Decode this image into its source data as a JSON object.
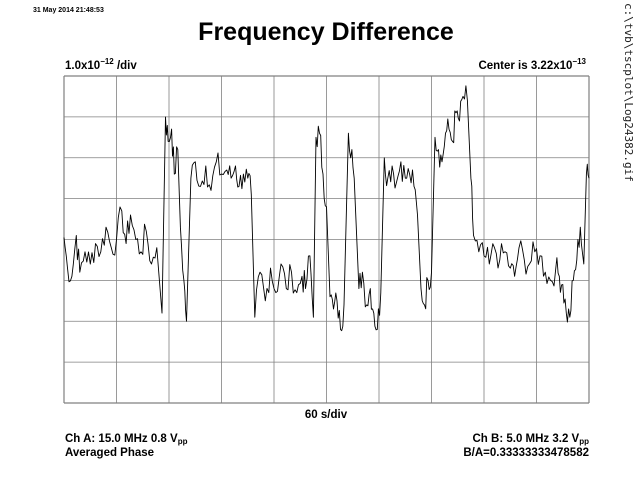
{
  "header": {
    "timestamp": "31 May 2014 21:48:53",
    "title": "Frequency Difference",
    "file_path": "c:\\tvb\\tscplot\\Log24382.gif"
  },
  "axis_labels": {
    "y_scale_mantissa": "1.0x10",
    "y_scale_exponent": "−12",
    "y_scale_suffix": " /div",
    "center_prefix": "Center is 3.22x10",
    "center_exponent": "−13",
    "x_div": "60 s/div"
  },
  "footer": {
    "ch_a_prefix": "Ch A: 15.0 MHz 0.8 V",
    "ch_a_sub": "pp",
    "mode": "Averaged Phase",
    "ch_b_prefix": "Ch B: 5.0 MHz 3.2 V",
    "ch_b_sub": "pp",
    "ratio": "B/A=0.33333333478582"
  },
  "colors": {
    "trace": "#000000",
    "grid": "#808080",
    "background": "#ffffff"
  },
  "chart_data": {
    "type": "line",
    "title": "Frequency Difference",
    "x_unit": "s",
    "y_unit": "parts in 10^-12, relative to center",
    "x_div_seconds": 60,
    "y_div": 1e-12,
    "center": 3.22e-13,
    "xlim": [
      0,
      600
    ],
    "ylim": [
      -4,
      4
    ],
    "grid": true,
    "series": [
      {
        "points": [
          [
            0,
            0.05
          ],
          [
            4,
            -0.7
          ],
          [
            9,
            -0.9
          ],
          [
            14,
            0.1
          ],
          [
            18,
            -0.8
          ],
          [
            24,
            -0.3
          ],
          [
            30,
            -0.6
          ],
          [
            36,
            -0.1
          ],
          [
            42,
            -0.3
          ],
          [
            48,
            0.3
          ],
          [
            54,
            -0.2
          ],
          [
            60,
            0.0
          ],
          [
            66,
            0.7
          ],
          [
            71,
            -0.1
          ],
          [
            76,
            0.6
          ],
          [
            82,
            0.0
          ],
          [
            88,
            -0.3
          ],
          [
            94,
            0.2
          ],
          [
            100,
            -0.6
          ],
          [
            106,
            -0.2
          ],
          [
            112,
            -1.8
          ],
          [
            116,
            3.0
          ],
          [
            119,
            2.4
          ],
          [
            123,
            2.7
          ],
          [
            126,
            1.6
          ],
          [
            130,
            2.2
          ],
          [
            133,
            0.3
          ],
          [
            137,
            -1.0
          ],
          [
            140,
            -2.0
          ],
          [
            145,
            1.5
          ],
          [
            150,
            1.9
          ],
          [
            156,
            1.3
          ],
          [
            162,
            1.8
          ],
          [
            168,
            1.2
          ],
          [
            174,
            1.9
          ],
          [
            180,
            1.6
          ],
          [
            186,
            1.7
          ],
          [
            191,
            1.5
          ],
          [
            196,
            1.8
          ],
          [
            200,
            1.3
          ],
          [
            205,
            1.6
          ],
          [
            210,
            1.5
          ],
          [
            214,
            1.1
          ],
          [
            218,
            -1.9
          ],
          [
            224,
            -0.8
          ],
          [
            230,
            -1.5
          ],
          [
            236,
            -0.7
          ],
          [
            242,
            -1.3
          ],
          [
            248,
            -0.6
          ],
          [
            254,
            -1.2
          ],
          [
            260,
            -0.8
          ],
          [
            266,
            -1.3
          ],
          [
            272,
            -0.9
          ],
          [
            276,
            -1.2
          ],
          [
            281,
            -0.4
          ],
          [
            285,
            -1.9
          ],
          [
            288,
            2.5
          ],
          [
            292,
            2.6
          ],
          [
            296,
            1.6
          ],
          [
            300,
            0.8
          ],
          [
            304,
            -1.4
          ],
          [
            308,
            -1.7
          ],
          [
            312,
            -1.5
          ],
          [
            316,
            -2.2
          ],
          [
            320,
            -1.6
          ],
          [
            325,
            2.6
          ],
          [
            329,
            2.2
          ],
          [
            333,
            0.8
          ],
          [
            337,
            -1.2
          ],
          [
            341,
            -0.8
          ],
          [
            346,
            -1.6
          ],
          [
            350,
            -1.2
          ],
          [
            354,
            -1.8
          ],
          [
            358,
            -2.2
          ],
          [
            362,
            -1.3
          ],
          [
            366,
            2.0
          ],
          [
            370,
            1.5
          ],
          [
            375,
            1.8
          ],
          [
            380,
            1.4
          ],
          [
            385,
            1.9
          ],
          [
            390,
            1.5
          ],
          [
            395,
            1.6
          ],
          [
            400,
            1.3
          ],
          [
            404,
            0.6
          ],
          [
            408,
            -1.2
          ],
          [
            412,
            -1.6
          ],
          [
            416,
            -1.0
          ],
          [
            420,
            -0.8
          ],
          [
            424,
            2.5
          ],
          [
            428,
            2.2
          ],
          [
            432,
            1.9
          ],
          [
            436,
            2.6
          ],
          [
            440,
            2.7
          ],
          [
            444,
            2.4
          ],
          [
            448,
            3.1
          ],
          [
            452,
            2.9
          ],
          [
            456,
            3.5
          ],
          [
            461,
            3.4
          ],
          [
            465,
            1.5
          ],
          [
            468,
            0.1
          ],
          [
            474,
            -0.3
          ],
          [
            480,
            -0.4
          ],
          [
            486,
            -0.6
          ],
          [
            492,
            -0.2
          ],
          [
            498,
            -0.5
          ],
          [
            504,
            -0.3
          ],
          [
            510,
            -0.7
          ],
          [
            515,
            -0.9
          ],
          [
            520,
            -0.2
          ],
          [
            526,
            -0.5
          ],
          [
            532,
            -0.6
          ],
          [
            538,
            -0.3
          ],
          [
            544,
            -0.4
          ],
          [
            550,
            -0.8
          ],
          [
            556,
            -1.0
          ],
          [
            562,
            -0.7
          ],
          [
            566,
            -0.9
          ],
          [
            570,
            -1.1
          ],
          [
            574,
            -1.8
          ],
          [
            578,
            -1.9
          ],
          [
            582,
            -1.0
          ],
          [
            586,
            -0.5
          ],
          [
            590,
            0.3
          ],
          [
            594,
            -0.6
          ],
          [
            597,
            1.6
          ],
          [
            600,
            1.5
          ]
        ]
      }
    ]
  }
}
